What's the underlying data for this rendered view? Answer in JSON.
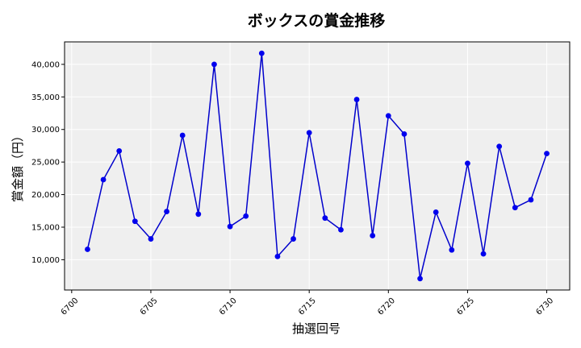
{
  "chart_data": {
    "type": "line",
    "title": "ボックスの賞金推移",
    "xlabel": "抽選回号",
    "ylabel": "賞金額（円）",
    "x": [
      6701,
      6702,
      6703,
      6704,
      6705,
      6706,
      6707,
      6708,
      6709,
      6710,
      6711,
      6712,
      6713,
      6714,
      6715,
      6716,
      6717,
      6718,
      6719,
      6720,
      6721,
      6722,
      6723,
      6724,
      6725,
      6726,
      6727,
      6728,
      6729,
      6730
    ],
    "series": [
      {
        "values": [
          11600,
          22300,
          26700,
          15900,
          13200,
          17400,
          29100,
          17000,
          40000,
          15100,
          16700,
          41700,
          10500,
          13200,
          29500,
          16400,
          14600,
          34600,
          13700,
          32100,
          29300,
          7100,
          17300,
          11500,
          24800,
          10900,
          27400,
          18000,
          19200,
          26300
        ]
      }
    ],
    "xlim": [
      6699.55,
      6731.45
    ],
    "ylim": [
      5350,
      43450
    ],
    "xticks": [
      6700,
      6705,
      6710,
      6715,
      6720,
      6725,
      6730
    ],
    "xtick_labels": [
      "6700",
      "6705",
      "6710",
      "6715",
      "6720",
      "6725",
      "6730"
    ],
    "yticks": [
      10000,
      15000,
      20000,
      25000,
      30000,
      35000,
      40000
    ],
    "ytick_labels": [
      "10,000",
      "15,000",
      "20,000",
      "25,000",
      "30,000",
      "35,000",
      "40,000"
    ],
    "grid": true,
    "line_color": "#0000cc",
    "marker_color": "#0000ee",
    "plot_bg": "#efefef"
  }
}
